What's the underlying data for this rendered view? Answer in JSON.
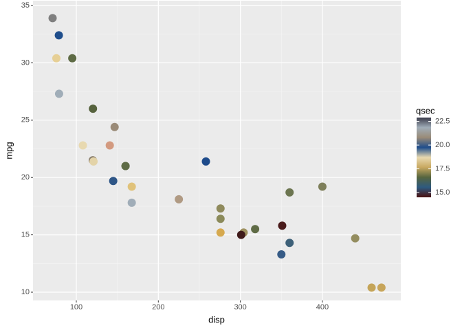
{
  "chart_data": {
    "type": "scatter",
    "x_label": "disp",
    "y_label": "mpg",
    "x": [
      160,
      160,
      108,
      258,
      360,
      225,
      360,
      146.7,
      140.8,
      167.6,
      167.6,
      275.8,
      275.8,
      275.8,
      472,
      460,
      440,
      78.7,
      75.7,
      71.1,
      120.1,
      318,
      304,
      350,
      400,
      79,
      120.3,
      95.1,
      351,
      145,
      301,
      121
    ],
    "y": [
      21.0,
      21.0,
      22.8,
      21.4,
      18.7,
      18.1,
      14.3,
      24.4,
      22.8,
      19.2,
      17.8,
      16.4,
      17.3,
      15.2,
      10.4,
      10.4,
      14.7,
      32.4,
      30.4,
      33.9,
      21.5,
      15.5,
      15.2,
      13.3,
      19.2,
      27.3,
      26.0,
      30.4,
      15.8,
      19.7,
      15.0,
      21.4
    ],
    "color_values": [
      16.46,
      17.02,
      18.61,
      19.44,
      17.02,
      20.22,
      15.84,
      20.0,
      22.9,
      18.3,
      18.9,
      17.4,
      17.6,
      18.0,
      17.98,
      17.82,
      17.42,
      19.47,
      18.52,
      19.9,
      20.01,
      16.87,
      17.3,
      15.41,
      17.05,
      18.9,
      16.7,
      16.9,
      14.5,
      15.5,
      14.6,
      18.6
    ],
    "colors": [
      "#5e6b45",
      "#5e6b45",
      "#e8d9b0",
      "#1d4a8a",
      "#6c7550",
      "#b09a83",
      "#3d6078",
      "#9a8b78",
      "#d39a80",
      "#e0c27a",
      "#a0adb8",
      "#8b8a5a",
      "#8f8a5c",
      "#d6a94f",
      "#c7a55a",
      "#c4a458",
      "#948d5f",
      "#1f4e8c",
      "#e6cf95",
      "#7f7f7f",
      "#8a7f6d",
      "#5f6b45",
      "#9e9160",
      "#365b86",
      "#7e7f5a",
      "#a0adb8",
      "#56623d",
      "#5e6b45",
      "#4a1b1b",
      "#2e5687",
      "#3f1a1a",
      "#e3d3a8"
    ],
    "xlim": [
      47.2,
      495.6
    ],
    "ylim": [
      9.28,
      35.42
    ],
    "xticks": [
      100,
      200,
      300,
      400
    ],
    "yticks": [
      10,
      15,
      20,
      25,
      30,
      35
    ],
    "grid": true,
    "legend": {
      "title": "qsec",
      "lim": [
        14.5,
        22.9
      ],
      "ticks": [
        {
          "value": 15,
          "label": "15.0"
        },
        17.5,
        {
          "value": 20,
          "label": "20.0"
        },
        22.5
      ],
      "gradient": [
        "#4a1010",
        "#2e5a80",
        "#55653f",
        "#c8a860",
        "#e8d9b0",
        "#1f4e8c",
        "#9a8b78",
        "#a0adb8",
        "#3a3a4a"
      ]
    }
  }
}
